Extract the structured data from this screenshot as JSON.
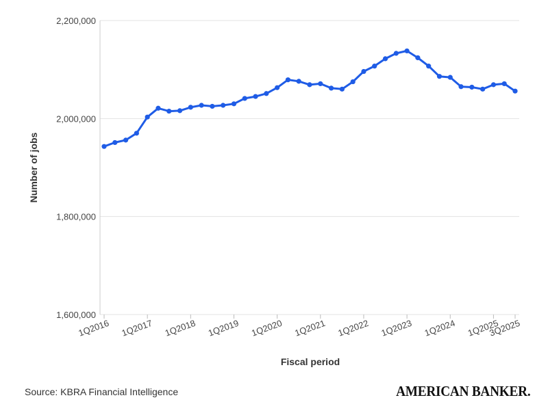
{
  "chart_data": {
    "type": "line",
    "xlabel": "Fiscal period",
    "ylabel": "Number of jobs",
    "ylim": [
      1600000,
      2200000
    ],
    "yticks": [
      "1,600,000",
      "1,800,000",
      "2,000,000",
      "2,200,000"
    ],
    "ytick_values": [
      1600000,
      1800000,
      2000000,
      2200000
    ],
    "xtick_labels": [
      "1Q2016",
      "1Q2017",
      "1Q2018",
      "1Q2019",
      "1Q2020",
      "1Q2021",
      "1Q2022",
      "1Q2023",
      "1Q2024",
      "1Q2025",
      "3Q2025"
    ],
    "xtick_indices": [
      0,
      4,
      8,
      12,
      16,
      20,
      24,
      28,
      32,
      36,
      38
    ],
    "grid": "horizontal",
    "color": "#1f5ce6",
    "series": [
      {
        "values": [
          1943000,
          1951000,
          1956000,
          1970000,
          2003000,
          2021000,
          2015000,
          2016000,
          2023000,
          2027000,
          2025000,
          2027000,
          2030000,
          2041000,
          2045000,
          2051000,
          2063000,
          2079000,
          2076000,
          2069000,
          2071000,
          2062000,
          2060000,
          2075000,
          2096000,
          2107000,
          2122000,
          2133000,
          2138000,
          2124000,
          2107000,
          2086000,
          2084000,
          2065000,
          2064000,
          2060000,
          2069000,
          2071000,
          2056000
        ]
      }
    ]
  },
  "footer": {
    "source": "Source: KBRA Financial Intelligence",
    "logo": "AMERICAN BANKER."
  }
}
